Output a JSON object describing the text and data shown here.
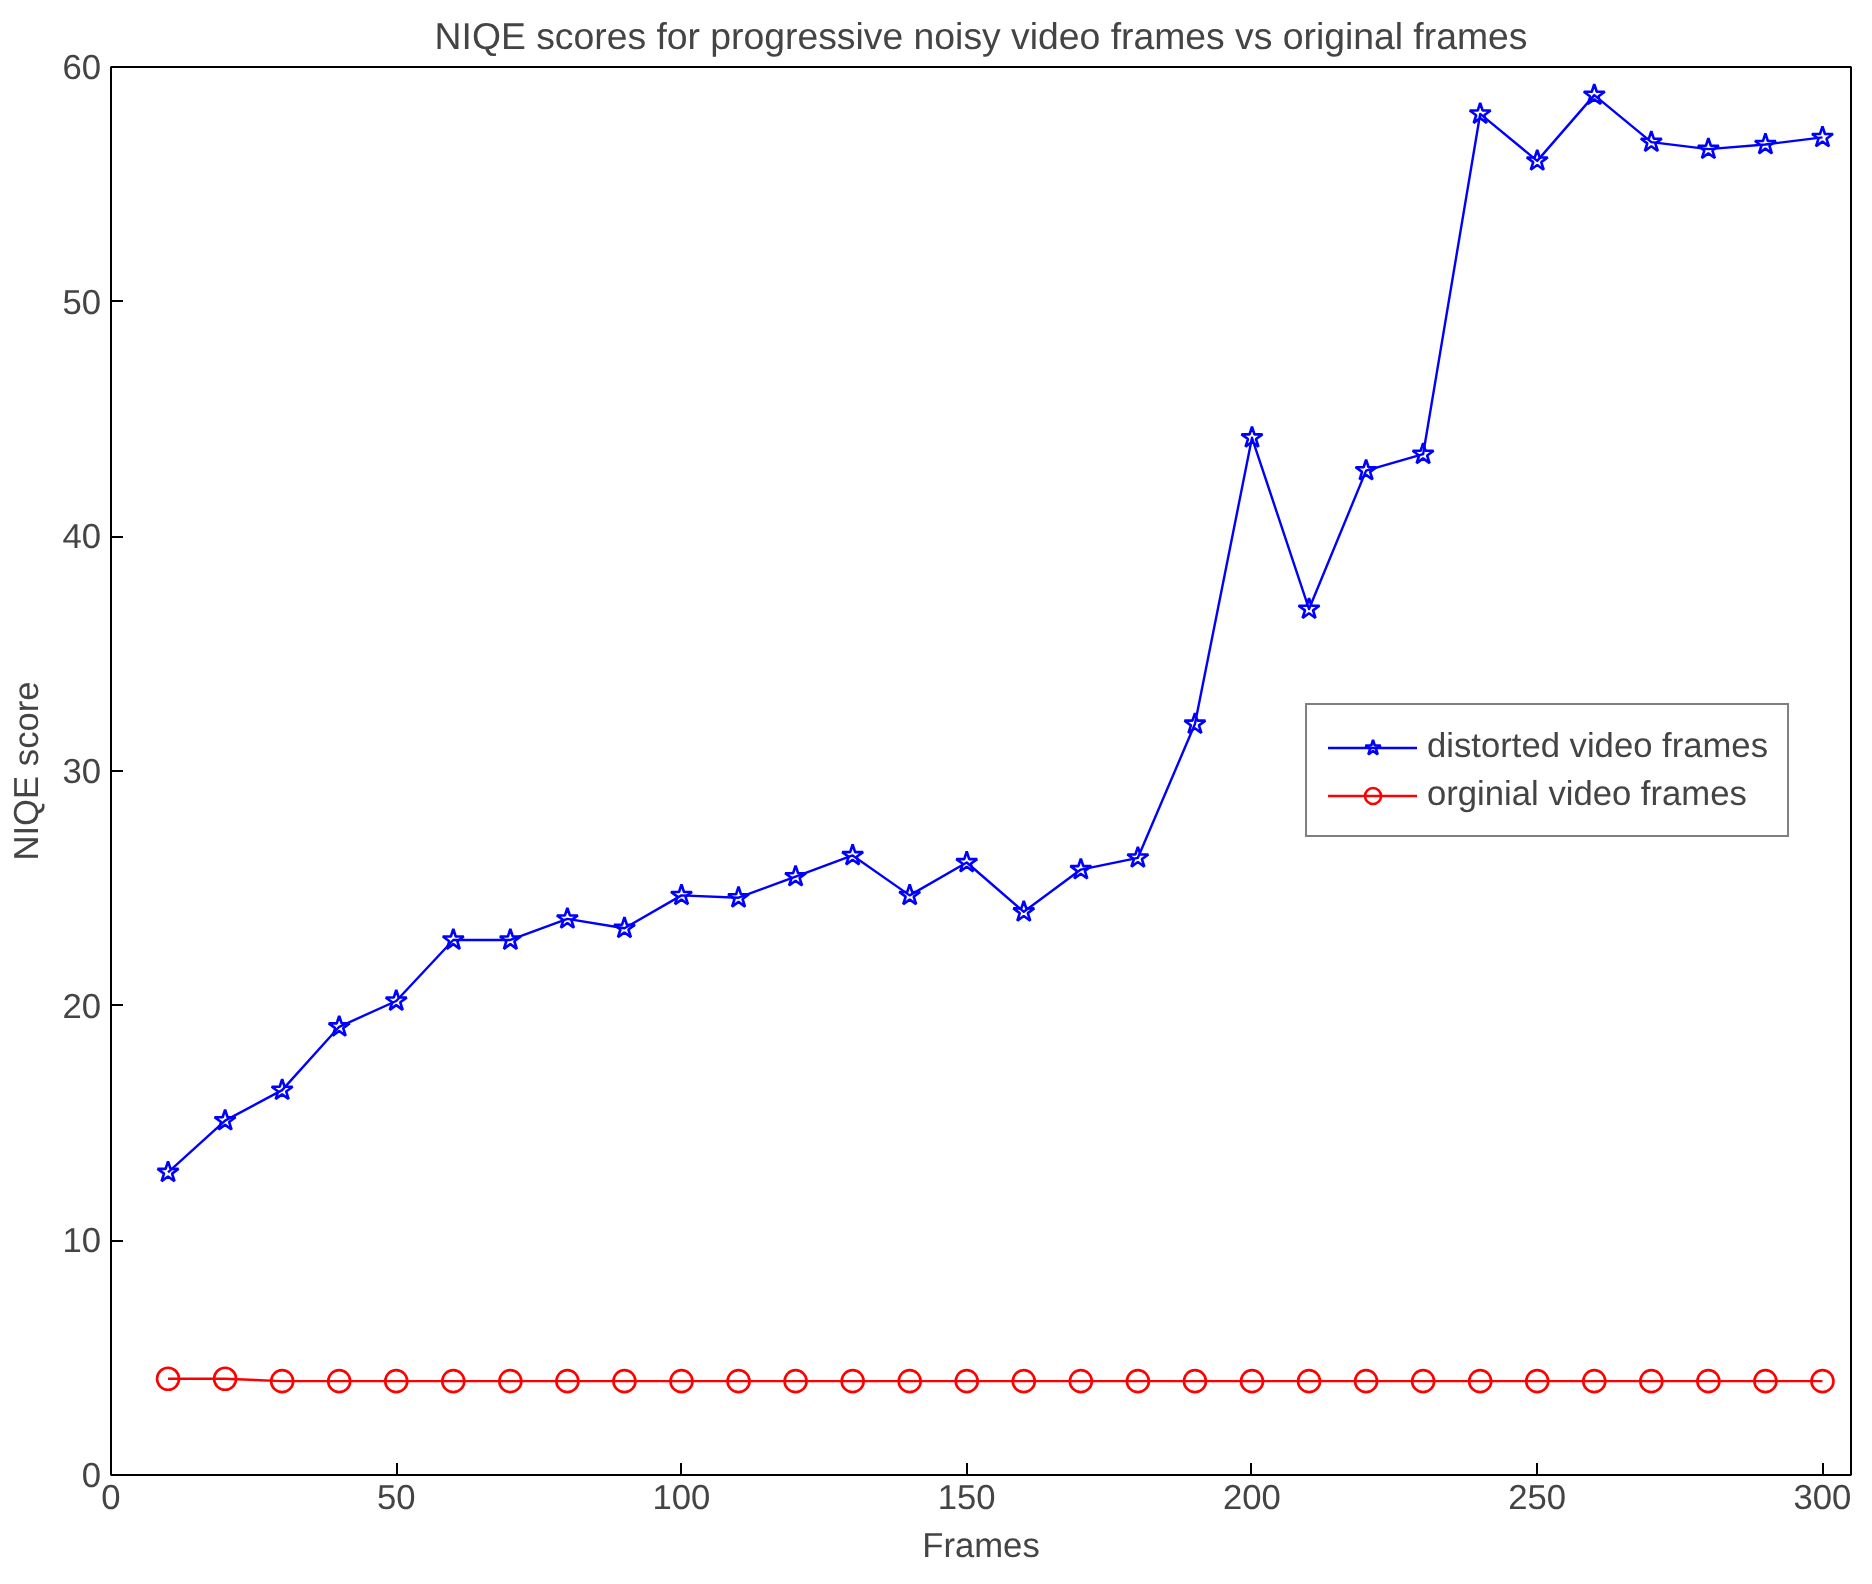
{
  "chart_data": {
    "type": "line",
    "title": "NIQE scores for progressive noisy video frames vs original frames",
    "xlabel": "Frames",
    "ylabel": "NIQE score",
    "x": [
      10,
      20,
      30,
      40,
      50,
      60,
      70,
      80,
      90,
      100,
      110,
      120,
      130,
      140,
      150,
      160,
      170,
      180,
      190,
      200,
      210,
      220,
      230,
      240,
      250,
      260,
      270,
      280,
      290,
      300
    ],
    "series": [
      {
        "name": "distorted video frames",
        "color": "#0000ff",
        "marker": "star",
        "values": [
          12.9,
          15.1,
          16.4,
          19.1,
          20.2,
          22.8,
          22.8,
          23.7,
          23.3,
          24.7,
          24.6,
          25.5,
          26.4,
          24.7,
          26.1,
          24.0,
          25.8,
          26.3,
          32.0,
          44.2,
          36.9,
          42.8,
          43.5,
          58.0,
          56.0,
          58.8,
          56.8,
          56.5,
          56.7,
          57.0
        ]
      },
      {
        "name": "orginial video frames",
        "color": "#ff0000",
        "marker": "circle",
        "values": [
          4.1,
          4.1,
          4.0,
          4.0,
          4.0,
          4.0,
          4.0,
          4.0,
          4.0,
          4.0,
          4.0,
          4.0,
          4.0,
          4.0,
          4.0,
          4.0,
          4.0,
          4.0,
          4.0,
          4.0,
          4.0,
          4.0,
          4.0,
          4.0,
          4.0,
          4.0,
          4.0,
          4.0,
          4.0,
          4.0
        ]
      }
    ],
    "xlim": [
      0,
      305
    ],
    "ylim": [
      0,
      60
    ],
    "xticks": [
      0,
      50,
      100,
      150,
      200,
      250,
      300
    ],
    "yticks": [
      0,
      10,
      20,
      30,
      40,
      50,
      60
    ],
    "grid": false,
    "legend": "right",
    "line_style": "solid"
  }
}
